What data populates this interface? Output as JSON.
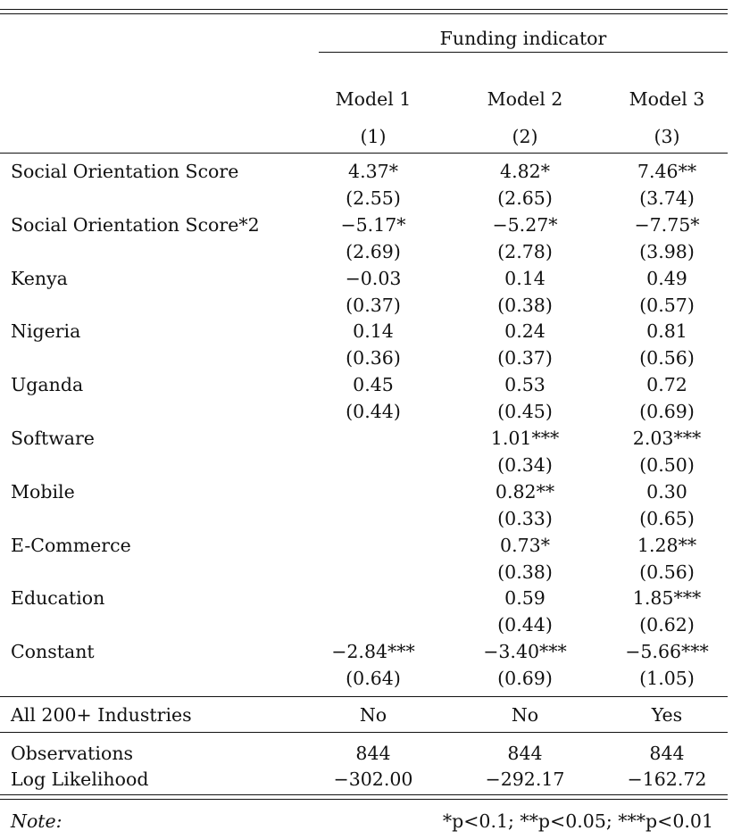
{
  "header": {
    "group": "Funding indicator",
    "models": [
      "Model 1",
      "Model 2",
      "Model 3"
    ],
    "numbers": [
      "(1)",
      "(2)",
      "(3)"
    ]
  },
  "rows": [
    {
      "label": "Social Orientation Score",
      "coef": [
        "4.37*",
        "4.82*",
        "7.46**"
      ],
      "se": [
        "(2.55)",
        "(2.65)",
        "(3.74)"
      ]
    },
    {
      "label": "Social Orientation Score*2",
      "coef": [
        "−5.17*",
        "−5.27*",
        "−7.75*"
      ],
      "se": [
        "(2.69)",
        "(2.78)",
        "(3.98)"
      ]
    },
    {
      "label": "Kenya",
      "coef": [
        "−0.03",
        "0.14",
        "0.49"
      ],
      "se": [
        "(0.37)",
        "(0.38)",
        "(0.57)"
      ]
    },
    {
      "label": "Nigeria",
      "coef": [
        "0.14",
        "0.24",
        "0.81"
      ],
      "se": [
        "(0.36)",
        "(0.37)",
        "(0.56)"
      ]
    },
    {
      "label": "Uganda",
      "coef": [
        "0.45",
        "0.53",
        "0.72"
      ],
      "se": [
        "(0.44)",
        "(0.45)",
        "(0.69)"
      ]
    },
    {
      "label": "Software",
      "coef": [
        "",
        "1.01***",
        "2.03***"
      ],
      "se": [
        "",
        "(0.34)",
        "(0.50)"
      ]
    },
    {
      "label": "Mobile",
      "coef": [
        "",
        "0.82**",
        "0.30"
      ],
      "se": [
        "",
        "(0.33)",
        "(0.65)"
      ]
    },
    {
      "label": "E-Commerce",
      "coef": [
        "",
        "0.73*",
        "1.28**"
      ],
      "se": [
        "",
        "(0.38)",
        "(0.56)"
      ]
    },
    {
      "label": "Education",
      "coef": [
        "",
        "0.59",
        "1.85***"
      ],
      "se": [
        "",
        "(0.44)",
        "(0.62)"
      ]
    },
    {
      "label": "Constant",
      "coef": [
        "−2.84***",
        "−3.40***",
        "−5.66***"
      ],
      "se": [
        "(0.64)",
        "(0.69)",
        "(1.05)"
      ]
    }
  ],
  "industries": {
    "label": "All 200+ Industries",
    "values": [
      "No",
      "No",
      "Yes"
    ]
  },
  "stats": [
    {
      "label": "Observations",
      "values": [
        "844",
        "844",
        "844"
      ]
    },
    {
      "label": "Log Likelihood",
      "values": [
        "−302.00",
        "−292.17",
        "−162.72"
      ]
    }
  ],
  "note": {
    "label": "Note:",
    "text": "*p<0.1; **p<0.05; ***p<0.01"
  }
}
